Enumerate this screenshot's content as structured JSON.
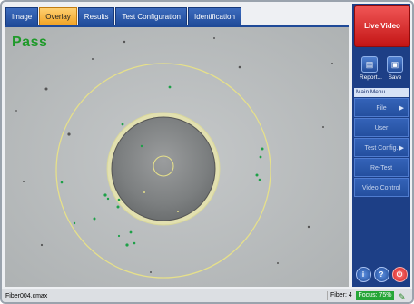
{
  "tabs": [
    {
      "label": "Image"
    },
    {
      "label": "Overlay"
    },
    {
      "label": "Results"
    },
    {
      "label": "Test Configuration"
    },
    {
      "label": "Identification"
    }
  ],
  "active_tab": "Overlay",
  "result": {
    "text": "Pass",
    "color": "#1f9a2a"
  },
  "panel": {
    "live_video": "Live Video",
    "report": "Report...",
    "save": "Save",
    "main_menu": "Main Menu",
    "menu_items": [
      {
        "label": "File",
        "arrow": "▶"
      },
      {
        "label": "User Preferences...",
        "arrow": ""
      },
      {
        "label": "Test Config.",
        "arrow": "▶"
      },
      {
        "label": "Re-Test",
        "arrow": ""
      },
      {
        "label": "Video Control",
        "arrow": ""
      }
    ],
    "bottom_icons": [
      "info-icon",
      "help-icon",
      "power-icon"
    ]
  },
  "status": {
    "file": "Fiber004.cmax",
    "fiber": "Fiber: 4",
    "focus": "Focus: 75%"
  },
  "colors": {
    "accent": "#1d3f86",
    "tab_active": "#f0a020",
    "overlay_ring": "#e6e08a",
    "defect": "#1ea048"
  }
}
